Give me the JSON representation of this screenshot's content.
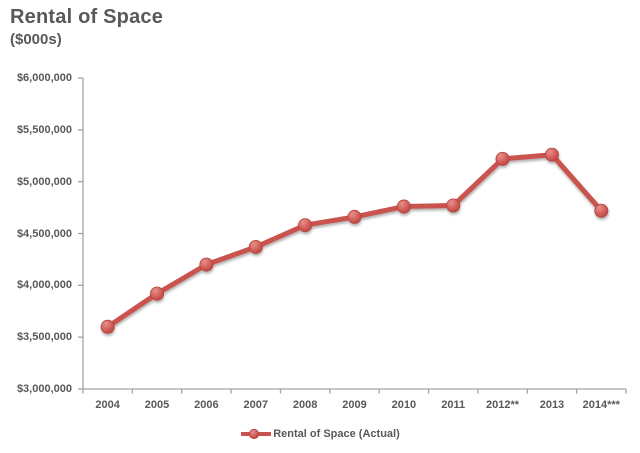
{
  "header": {
    "title": "Rental of Space",
    "subtitle": "($000s)"
  },
  "chart_data": {
    "type": "line",
    "title": "Rental of Space",
    "subtitle": "($000s)",
    "categories": [
      "2004",
      "2005",
      "2006",
      "2007",
      "2008",
      "2009",
      "2010",
      "2011",
      "2012**",
      "2013",
      "2014***"
    ],
    "series": [
      {
        "name": "Rental of Space (Actual)",
        "values": [
          3600000,
          3920000,
          4200000,
          4370000,
          4580000,
          4660000,
          4760000,
          4770000,
          5220000,
          5260000,
          4720000
        ]
      }
    ],
    "ylim": [
      3000000,
      6000000
    ],
    "ytick_step": 500000,
    "ytick_prefix": "$",
    "grid": false,
    "legend_position": "bottom",
    "colors": {
      "line": "#c9524e",
      "marker_fill": "#d4615c",
      "marker_highlight": "#e59089",
      "marker_edge": "#b6433f",
      "axis": "#a3a3a3",
      "text": "#595959"
    }
  }
}
